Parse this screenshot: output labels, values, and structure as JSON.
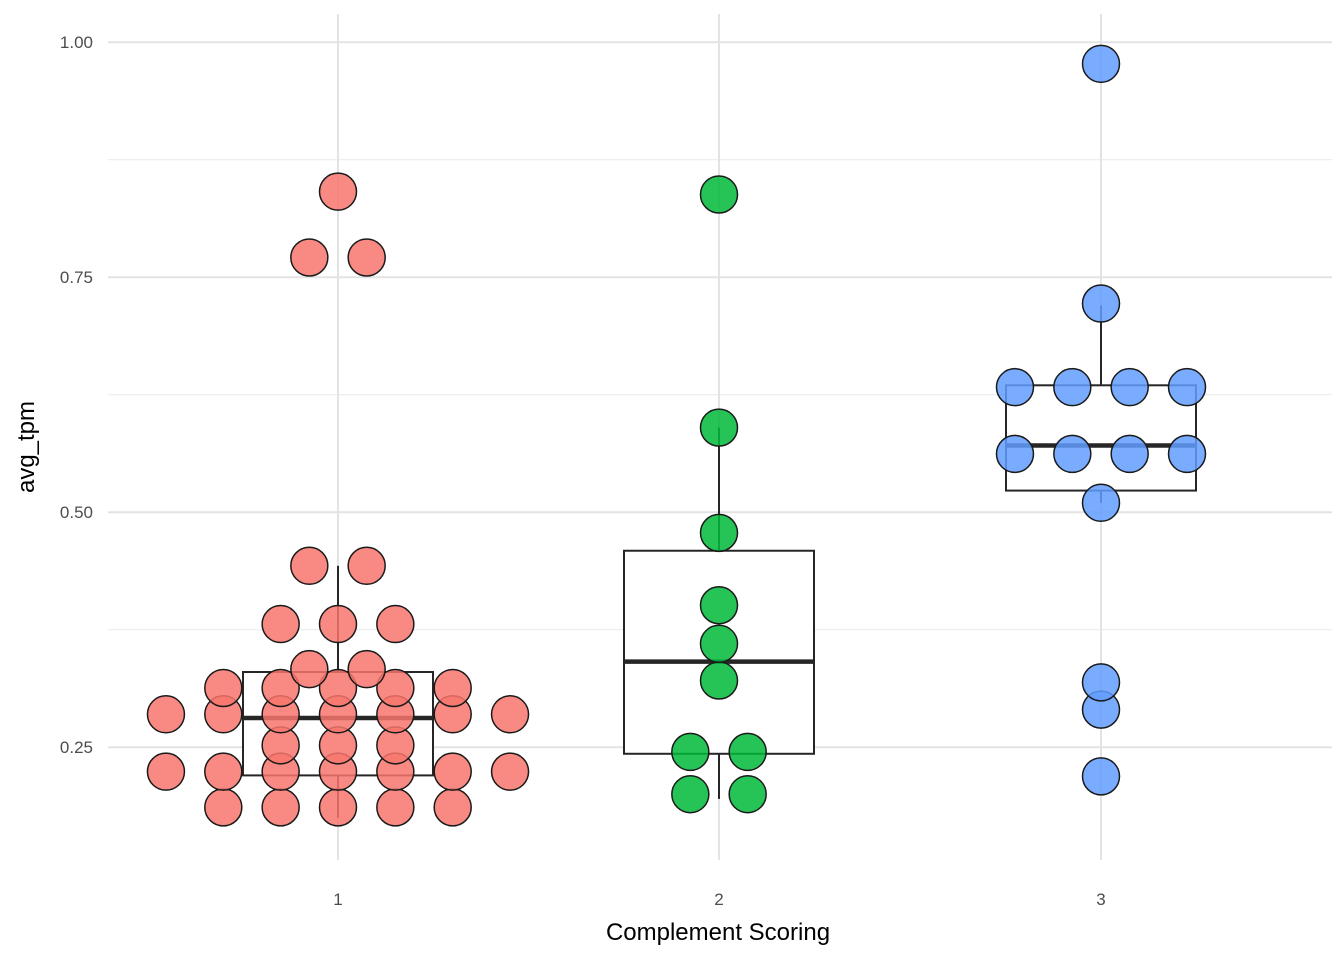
{
  "chart_data": {
    "type": "box_dotplot",
    "xlabel": "Complement Scoring",
    "ylabel": "avg_tpm",
    "categories": [
      "1",
      "2",
      "3"
    ],
    "ylim": [
      0.13,
      1.03
    ],
    "yticks": [
      "0.25",
      "0.50",
      "0.75",
      "1.00"
    ],
    "grid": true,
    "legend": "none",
    "colors": {
      "1": "#F8766D",
      "2": "#00BA38",
      "3": "#619CFF"
    },
    "boxes": [
      {
        "group": "1",
        "whisker_low": 0.175,
        "q1": 0.22,
        "median": 0.281,
        "q3": 0.33,
        "whisker_high": 0.443
      },
      {
        "group": "2",
        "whisker_low": 0.195,
        "q1": 0.243,
        "median": 0.341,
        "q3": 0.459,
        "whisker_high": 0.59
      },
      {
        "group": "3",
        "whisker_low": 0.51,
        "q1": 0.523,
        "median": 0.571,
        "q3": 0.635,
        "whisker_high": 0.72
      }
    ],
    "series": [
      {
        "name": "1",
        "values": [
          0.186,
          0.186,
          0.186,
          0.186,
          0.186,
          0.224,
          0.224,
          0.224,
          0.224,
          0.224,
          0.224,
          0.224,
          0.252,
          0.252,
          0.252,
          0.285,
          0.285,
          0.285,
          0.285,
          0.285,
          0.285,
          0.285,
          0.313,
          0.313,
          0.313,
          0.313,
          0.313,
          0.333,
          0.333,
          0.381,
          0.381,
          0.381,
          0.443,
          0.443,
          0.771,
          0.771,
          0.841
        ]
      },
      {
        "name": "2",
        "values": [
          0.2,
          0.2,
          0.245,
          0.245,
          0.321,
          0.36,
          0.401,
          0.478,
          0.59,
          0.838
        ]
      },
      {
        "name": "3",
        "values": [
          0.219,
          0.29,
          0.319,
          0.51,
          0.562,
          0.562,
          0.562,
          0.562,
          0.633,
          0.633,
          0.633,
          0.633,
          0.722,
          0.977
        ]
      }
    ]
  }
}
